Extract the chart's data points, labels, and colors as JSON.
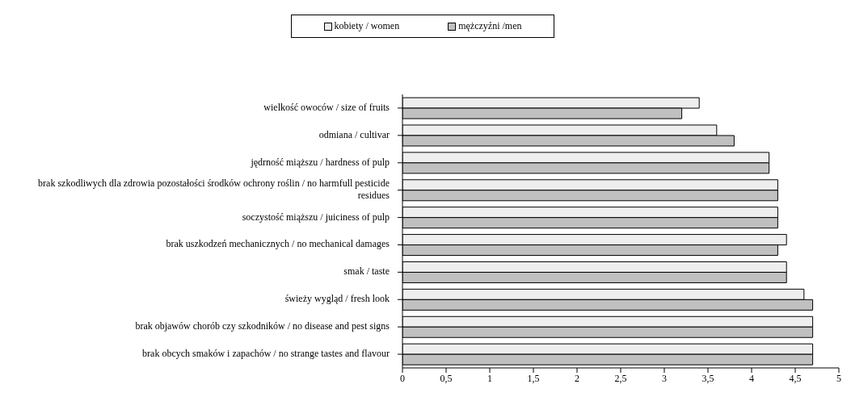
{
  "chart_data": {
    "type": "bar",
    "orientation": "horizontal",
    "categories": [
      "wielkość owoców / size of fruits",
      "odmiana / cultivar",
      "jędrność miąższu / hardness of pulp",
      "brak szkodliwych dla zdrowia pozostałości środków ochrony roślin / no harmfull pesticide residues",
      "soczystość miąższu / juiciness of pulp",
      "brak uszkodzeń mechanicznych / no mechanical damages",
      "smak / taste",
      "świeży wygląd / fresh look",
      "brak objawów chorób czy szkodników / no disease and pest signs",
      "brak obcych smaków i zapachów / no strange tastes and flavour"
    ],
    "series": [
      {
        "name": "kobiety / women",
        "color": "#eeeeee",
        "values": [
          3.4,
          3.6,
          4.2,
          4.3,
          4.3,
          4.4,
          4.4,
          4.6,
          4.7,
          4.7
        ]
      },
      {
        "name": "mężczyźni /men",
        "color": "#c0c0c0",
        "values": [
          3.2,
          3.8,
          4.2,
          4.3,
          4.3,
          4.3,
          4.4,
          4.7,
          4.7,
          4.7
        ]
      }
    ],
    "xlim": [
      0,
      5
    ],
    "xticks": [
      {
        "value": 0,
        "label": "0"
      },
      {
        "value": 0.5,
        "label": "0,5"
      },
      {
        "value": 1,
        "label": "1"
      },
      {
        "value": 1.5,
        "label": "1,5"
      },
      {
        "value": 2,
        "label": "2"
      },
      {
        "value": 2.5,
        "label": "2,5"
      },
      {
        "value": 3,
        "label": "3"
      },
      {
        "value": 3.5,
        "label": "3,5"
      },
      {
        "value": 4,
        "label": "4"
      },
      {
        "value": 4.5,
        "label": "4,5"
      },
      {
        "value": 5,
        "label": "5"
      }
    ],
    "grid": false,
    "legend": "top"
  }
}
